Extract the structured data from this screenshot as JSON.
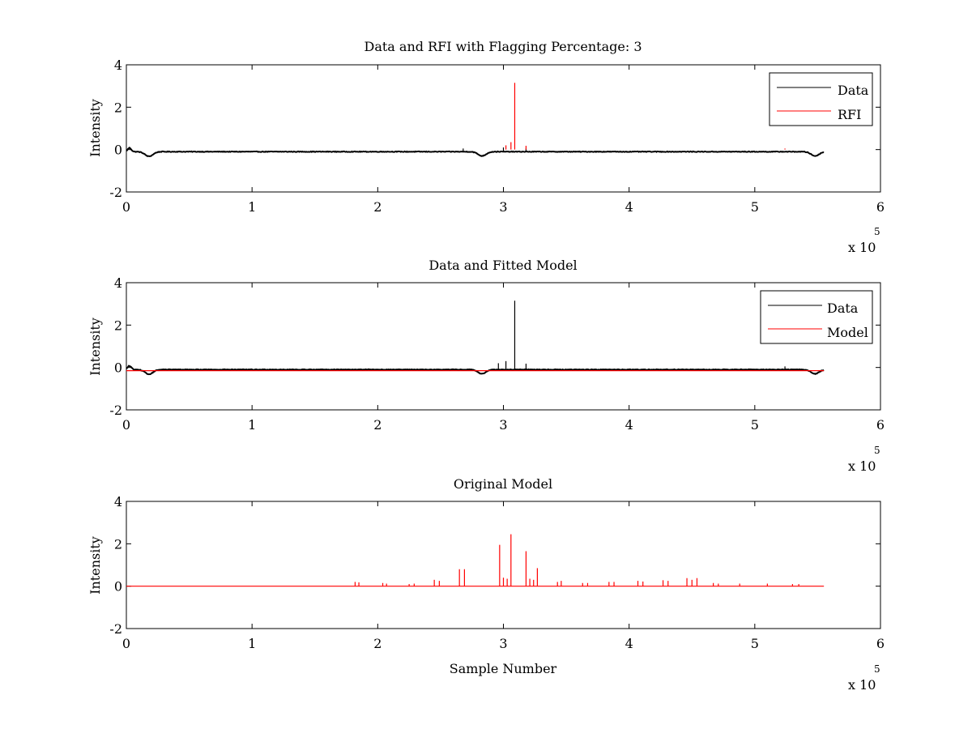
{
  "colors": {
    "data": "#000000",
    "red": "#ff0000",
    "axes": "#000000",
    "background": "#ffffff"
  },
  "chart_data": [
    {
      "type": "line",
      "title": "Data and RFI with Flagging Percentage: 3",
      "xlabel": "",
      "ylabel": "Intensity",
      "xlim": [
        0,
        600000
      ],
      "ylim": [
        -2,
        4
      ],
      "x_ticks": [
        "0",
        "1",
        "2",
        "3",
        "4",
        "5",
        "6"
      ],
      "y_ticks": [
        "-2",
        "0",
        "2",
        "4"
      ],
      "x_exponent": {
        "base": "x 10",
        "power": "5"
      },
      "grid": false,
      "legend": {
        "position": "top-right",
        "entries": [
          "Data",
          "RFI"
        ]
      },
      "series": [
        {
          "name": "Data",
          "color": "#000000",
          "baseline": -0.1,
          "x_end": 555000,
          "dips": [
            {
              "x": 18000,
              "depth": -0.22
            },
            {
              "x": 283000,
              "depth": -0.2
            },
            {
              "x": 548000,
              "depth": -0.2
            }
          ],
          "spikes": [
            {
              "x": 268000,
              "y": 0.05
            },
            {
              "x": 300000,
              "y": 0.1
            },
            {
              "x": 318000,
              "y": 0.05
            }
          ]
        },
        {
          "name": "RFI",
          "color": "#ff0000",
          "spikes": [
            {
              "x": 302000,
              "y": 0.2
            },
            {
              "x": 306000,
              "y": 0.35
            },
            {
              "x": 309000,
              "y": 3.15
            },
            {
              "x": 318000,
              "y": 0.18
            },
            {
              "x": 524000,
              "y": 0.05
            }
          ]
        }
      ]
    },
    {
      "type": "line",
      "title": "Data and Fitted Model",
      "xlabel": "",
      "ylabel": "Intensity",
      "xlim": [
        0,
        600000
      ],
      "ylim": [
        -2,
        4
      ],
      "x_ticks": [
        "0",
        "1",
        "2",
        "3",
        "4",
        "5",
        "6"
      ],
      "y_ticks": [
        "-2",
        "0",
        "2",
        "4"
      ],
      "x_exponent": {
        "base": "x 10",
        "power": "5"
      },
      "grid": false,
      "legend": {
        "position": "top-right",
        "entries": [
          "Data",
          "Model"
        ]
      },
      "series": [
        {
          "name": "Data",
          "color": "#000000",
          "baseline": -0.1,
          "x_end": 555000,
          "dips": [
            {
              "x": 18000,
              "depth": -0.22
            },
            {
              "x": 283000,
              "depth": -0.2
            },
            {
              "x": 548000,
              "depth": -0.2
            }
          ],
          "spikes": [
            {
              "x": 296000,
              "y": 0.2
            },
            {
              "x": 302000,
              "y": 0.3
            },
            {
              "x": 309000,
              "y": 3.15
            },
            {
              "x": 318000,
              "y": 0.18
            },
            {
              "x": 524000,
              "y": 0.05
            }
          ]
        },
        {
          "name": "Model",
          "color": "#ff0000",
          "baseline": -0.15,
          "x_end": 555000
        }
      ]
    },
    {
      "type": "line",
      "title": "Original Model",
      "xlabel": "Sample Number",
      "ylabel": "Intensity",
      "xlim": [
        0,
        600000
      ],
      "ylim": [
        -2,
        4
      ],
      "x_ticks": [
        "0",
        "1",
        "2",
        "3",
        "4",
        "5",
        "6"
      ],
      "y_ticks": [
        "-2",
        "0",
        "2",
        "4"
      ],
      "x_exponent": {
        "base": "x 10",
        "power": "5"
      },
      "grid": false,
      "series": [
        {
          "color": "#ff0000",
          "baseline": 0.0,
          "x_end": 555000,
          "spikes": [
            {
              "x": 182000,
              "y": 0.2
            },
            {
              "x": 185000,
              "y": 0.18
            },
            {
              "x": 204000,
              "y": 0.15
            },
            {
              "x": 207000,
              "y": 0.12
            },
            {
              "x": 225000,
              "y": 0.1
            },
            {
              "x": 229000,
              "y": 0.12
            },
            {
              "x": 245000,
              "y": 0.3
            },
            {
              "x": 249000,
              "y": 0.25
            },
            {
              "x": 265000,
              "y": 0.8
            },
            {
              "x": 269000,
              "y": 0.8
            },
            {
              "x": 297000,
              "y": 1.95
            },
            {
              "x": 300000,
              "y": 0.4
            },
            {
              "x": 303000,
              "y": 0.35
            },
            {
              "x": 306000,
              "y": 2.45
            },
            {
              "x": 318000,
              "y": 1.65
            },
            {
              "x": 321000,
              "y": 0.35
            },
            {
              "x": 324000,
              "y": 0.3
            },
            {
              "x": 327000,
              "y": 0.85
            },
            {
              "x": 343000,
              "y": 0.2
            },
            {
              "x": 346000,
              "y": 0.25
            },
            {
              "x": 363000,
              "y": 0.15
            },
            {
              "x": 367000,
              "y": 0.15
            },
            {
              "x": 384000,
              "y": 0.2
            },
            {
              "x": 388000,
              "y": 0.2
            },
            {
              "x": 407000,
              "y": 0.25
            },
            {
              "x": 411000,
              "y": 0.22
            },
            {
              "x": 427000,
              "y": 0.28
            },
            {
              "x": 431000,
              "y": 0.25
            },
            {
              "x": 446000,
              "y": 0.38
            },
            {
              "x": 450000,
              "y": 0.3
            },
            {
              "x": 454000,
              "y": 0.38
            },
            {
              "x": 467000,
              "y": 0.15
            },
            {
              "x": 471000,
              "y": 0.12
            },
            {
              "x": 488000,
              "y": 0.12
            },
            {
              "x": 510000,
              "y": 0.12
            },
            {
              "x": 530000,
              "y": 0.1
            },
            {
              "x": 535000,
              "y": 0.1
            }
          ]
        }
      ]
    }
  ]
}
